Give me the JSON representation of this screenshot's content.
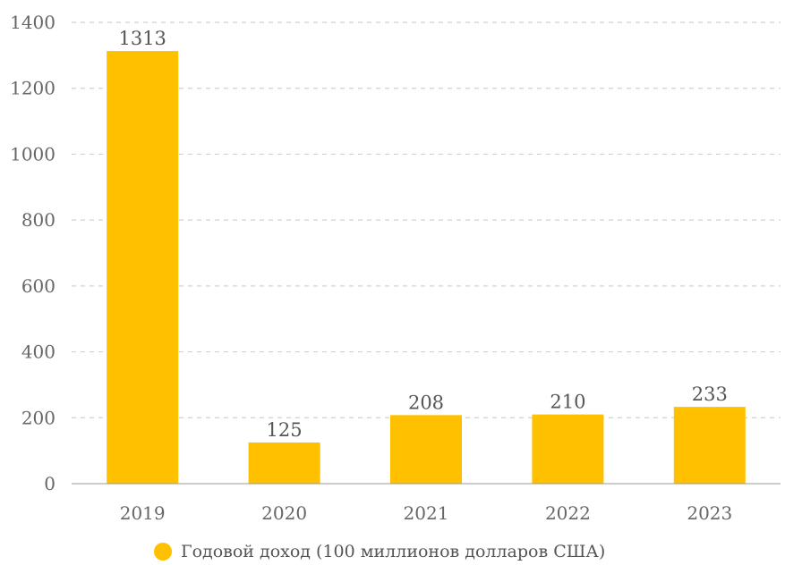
{
  "chart_data": {
    "type": "bar",
    "categories": [
      "2019",
      "2020",
      "2021",
      "2022",
      "2023"
    ],
    "series": [
      {
        "name": "Годовой доход (100 миллионов долларов США)",
        "values": [
          1313,
          125,
          208,
          210,
          233
        ]
      }
    ],
    "ylim": [
      0,
      1400
    ],
    "yticks": [
      "0",
      "200",
      "400",
      "600",
      "800",
      "1000",
      "1200",
      "1400"
    ],
    "grid": true,
    "legend_position": "bottom",
    "bar_color": "#FFC000",
    "data_labels": [
      "1313",
      "125",
      "208",
      "210",
      "233"
    ]
  },
  "legend": {
    "label": "Годовой доход (100 миллионов долларов США)",
    "color": "#FFC000"
  }
}
